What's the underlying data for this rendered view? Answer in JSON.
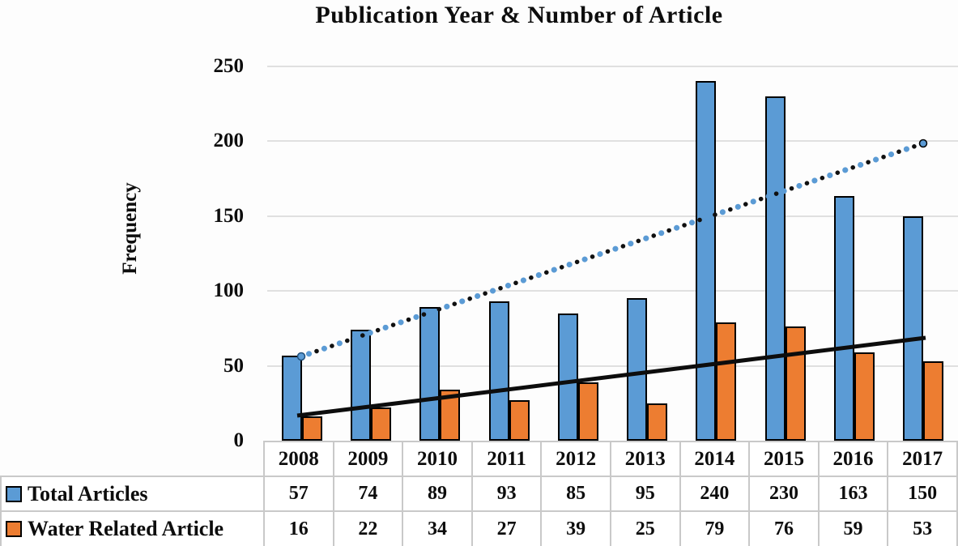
{
  "title": "Publication Year & Number of Article",
  "y_axis": {
    "label": "Frequency",
    "ticks": [
      "250",
      "200",
      "150",
      "100",
      "50",
      "0"
    ]
  },
  "chart_data": {
    "type": "bar",
    "title": "Publication Year & Number of Article",
    "xlabel": "",
    "ylabel": "Frequency",
    "ylim": [
      0,
      250
    ],
    "ytick_interval": 50,
    "grid": true,
    "legend_position": "table-left-column",
    "categories": [
      "2008",
      "2009",
      "2010",
      "2011",
      "2012",
      "2013",
      "2014",
      "2015",
      "2016",
      "2017"
    ],
    "series": [
      {
        "name": "Total Articles",
        "color": "#5B9BD5",
        "values": [
          57,
          74,
          89,
          93,
          85,
          95,
          240,
          230,
          163,
          150
        ]
      },
      {
        "name": "Water Related Article",
        "color": "#ED7D31",
        "values": [
          16,
          22,
          34,
          27,
          39,
          25,
          79,
          76,
          59,
          53
        ]
      }
    ],
    "trendlines": [
      {
        "series": "Total Articles",
        "style": "dotted",
        "colors": [
          "#5B9BD5",
          "#000000"
        ],
        "start_value": 57,
        "end_value": 198
      },
      {
        "series": "Water Related Article",
        "style": "solid",
        "colors": [
          "#000000"
        ],
        "start_value": 17,
        "end_value": 69
      }
    ],
    "bar_outline_color": "#000000",
    "gridline_color": "#e0e0e0"
  }
}
